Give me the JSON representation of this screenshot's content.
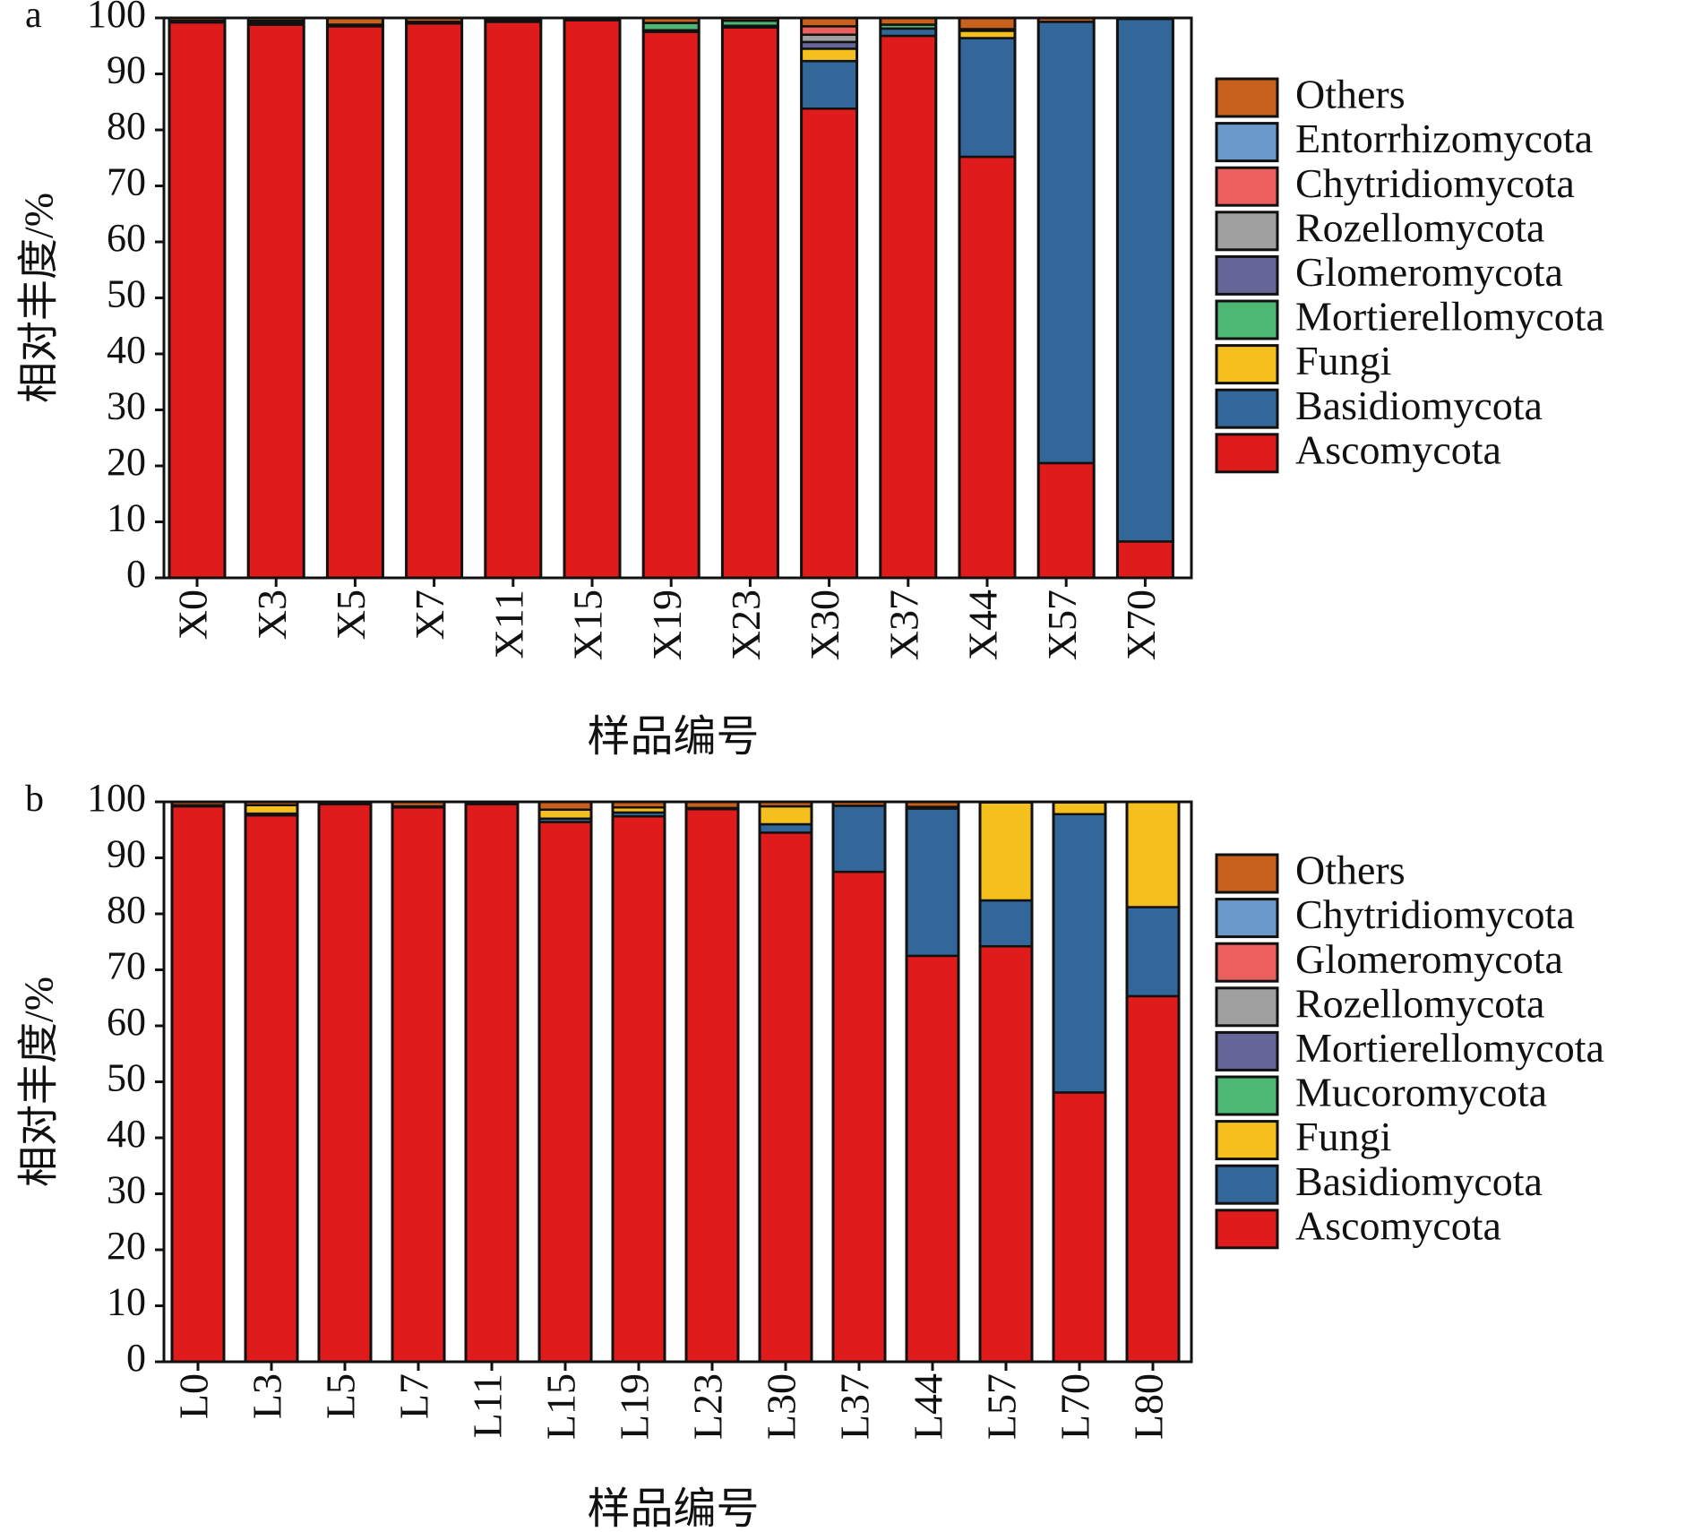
{
  "chart_data": [
    {
      "type": "bar",
      "stacked": true,
      "panel_label": "a",
      "ylabel": "相对丰度/%",
      "xlabel": "样品编号",
      "ylim": [
        0,
        100
      ],
      "yticks": [
        "0",
        "10",
        "20",
        "30",
        "40",
        "50",
        "60",
        "70",
        "80",
        "90",
        "100"
      ],
      "categories": [
        "X0",
        "X3",
        "X5",
        "X7",
        "X11",
        "X15",
        "X19",
        "X23",
        "X30",
        "X37",
        "X44",
        "X57",
        "X70"
      ],
      "legend_position": "right",
      "series": [
        {
          "name": "Ascomycota",
          "color": "#e01b1b",
          "values": [
            99.2,
            98.8,
            98.5,
            99.0,
            99.3,
            99.6,
            97.5,
            98.3,
            83.8,
            96.8,
            75.2,
            20.5,
            6.5
          ]
        },
        {
          "name": "Basidiomycota",
          "color": "#336699",
          "values": [
            0.3,
            0.4,
            0.3,
            0.3,
            0.3,
            0.1,
            0.3,
            0.3,
            8.5,
            1.3,
            21.2,
            78.8,
            93.3
          ]
        },
        {
          "name": "Fungi",
          "color": "#f5bf1e",
          "values": [
            0,
            0,
            0,
            0,
            0,
            0,
            0,
            0,
            2.2,
            0,
            1.3,
            0,
            0
          ]
        },
        {
          "name": "Mortierellomycota",
          "color": "#4cb874",
          "values": [
            0,
            0.3,
            0,
            0,
            0,
            0,
            1.3,
            0.9,
            0,
            0.7,
            0.3,
            0,
            0
          ]
        },
        {
          "name": "Glomeromycota",
          "color": "#666699",
          "values": [
            0,
            0,
            0,
            0,
            0,
            0,
            0,
            0,
            1.2,
            0,
            0,
            0,
            0
          ]
        },
        {
          "name": "Rozellomycota",
          "color": "#a0a0a0",
          "values": [
            0,
            0,
            0,
            0,
            0,
            0,
            0,
            0,
            1.3,
            0,
            0,
            0,
            0
          ]
        },
        {
          "name": "Chytridiomycota",
          "color": "#ec5f5f",
          "values": [
            0,
            0,
            0,
            0,
            0,
            0,
            0,
            0,
            1.5,
            0,
            0,
            0,
            0
          ]
        },
        {
          "name": "Entorrhizomycota",
          "color": "#6b99cc",
          "values": [
            0,
            0,
            0,
            0,
            0,
            0,
            0,
            0,
            0,
            0,
            0,
            0,
            0
          ]
        },
        {
          "name": "Others",
          "color": "#c8601e",
          "values": [
            0.5,
            0.5,
            1.2,
            0.7,
            0.4,
            0.3,
            0.9,
            0.5,
            1.5,
            1.2,
            2.0,
            0.7,
            0.2
          ]
        }
      ]
    },
    {
      "type": "bar",
      "stacked": true,
      "panel_label": "b",
      "ylabel": "相对丰度/%",
      "xlabel": "样品编号",
      "ylim": [
        0,
        100
      ],
      "yticks": [
        "0",
        "10",
        "20",
        "30",
        "40",
        "50",
        "60",
        "70",
        "80",
        "90",
        "100"
      ],
      "categories": [
        "L0",
        "L3",
        "L5",
        "L7",
        "L11",
        "L15",
        "L19",
        "L23",
        "L30",
        "L37",
        "L44",
        "L57",
        "L70",
        "L80"
      ],
      "legend_position": "right",
      "series": [
        {
          "name": "Ascomycota",
          "color": "#e01b1b",
          "values": [
            99.2,
            97.6,
            99.6,
            99.0,
            99.6,
            96.4,
            97.4,
            98.7,
            94.5,
            87.5,
            72.5,
            74.2,
            48.1,
            65.3
          ]
        },
        {
          "name": "Basidiomycota",
          "color": "#336699",
          "values": [
            0.2,
            0.3,
            0.1,
            0.2,
            0.1,
            0.6,
            0.7,
            0.2,
            1.5,
            11.8,
            26.3,
            8.2,
            49.7,
            15.9
          ]
        },
        {
          "name": "Fungi",
          "color": "#f5bf1e",
          "values": [
            0,
            1.5,
            0,
            0,
            0,
            1.6,
            0.9,
            0,
            3.2,
            0,
            0.3,
            17.5,
            2.1,
            18.8
          ]
        },
        {
          "name": "Mucoromycota",
          "color": "#4cb874",
          "values": [
            0,
            0,
            0,
            0,
            0,
            0,
            0,
            0,
            0,
            0,
            0,
            0,
            0,
            0
          ]
        },
        {
          "name": "Mortierellomycota",
          "color": "#666699",
          "values": [
            0,
            0,
            0,
            0,
            0,
            0,
            0,
            0,
            0,
            0,
            0,
            0,
            0,
            0
          ]
        },
        {
          "name": "Rozellomycota",
          "color": "#a0a0a0",
          "values": [
            0,
            0,
            0,
            0,
            0,
            0,
            0,
            0,
            0,
            0,
            0,
            0,
            0,
            0
          ]
        },
        {
          "name": "Glomeromycota",
          "color": "#ec5f5f",
          "values": [
            0,
            0,
            0,
            0,
            0,
            0,
            0,
            0,
            0,
            0,
            0,
            0,
            0,
            0
          ]
        },
        {
          "name": "Chytridiomycota",
          "color": "#6b99cc",
          "values": [
            0,
            0,
            0,
            0,
            0,
            0,
            0,
            0,
            0,
            0,
            0,
            0,
            0,
            0
          ]
        },
        {
          "name": "Others",
          "color": "#c8601e",
          "values": [
            0.6,
            0.6,
            0.3,
            0.8,
            0.3,
            1.4,
            1.0,
            1.1,
            0.8,
            0.7,
            0.9,
            0.1,
            0.1,
            0
          ]
        }
      ]
    }
  ]
}
